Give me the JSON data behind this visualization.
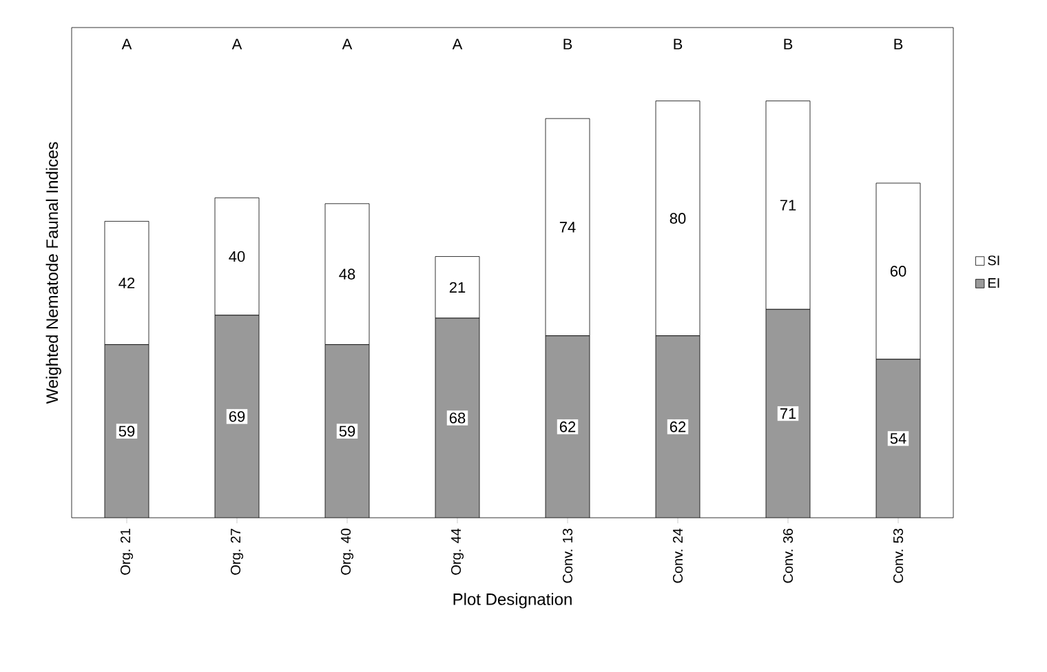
{
  "chart_data": {
    "type": "bar",
    "stacked": true,
    "xlabel": "Plot Designation",
    "ylabel": "Weighted Nematode Faunal Indices",
    "categories": [
      "Org. 21",
      "Org. 27",
      "Org. 40",
      "Org. 44",
      "Conv. 13",
      "Conv. 24",
      "Conv. 36",
      "Conv. 53"
    ],
    "series": [
      {
        "name": "EI",
        "color": "#999999",
        "values": [
          59,
          69,
          59,
          68,
          62,
          62,
          71,
          54
        ],
        "value_labels": [
          "59",
          "69",
          "59",
          "68",
          "62",
          "62",
          "71",
          "54"
        ]
      },
      {
        "name": "SI",
        "color": "#ffffff",
        "values": [
          42,
          40,
          48,
          21,
          74,
          80,
          71,
          60
        ],
        "value_labels": [
          "42",
          "40",
          "48",
          "21",
          "74",
          "80",
          "71",
          "60"
        ]
      }
    ],
    "ylim": [
      0,
      167
    ],
    "tick_labels": "x",
    "legend": "right",
    "grid": false,
    "annotations": [
      "A",
      "A",
      "A",
      "A",
      "B",
      "B",
      "B",
      "B"
    ]
  }
}
